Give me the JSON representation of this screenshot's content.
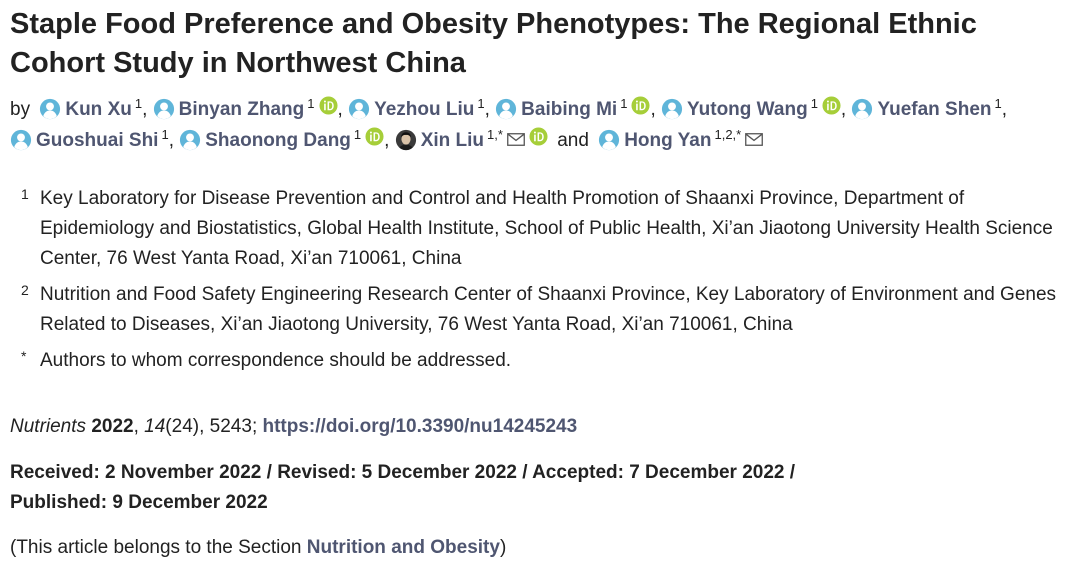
{
  "title": "Staple Food Preference and Obesity Phenotypes: The Regional Ethnic Cohort Study in Northwest China",
  "by_label": "by",
  "authors": [
    {
      "name": "Kun Xu",
      "aff": "1",
      "orcid": false,
      "mail": false,
      "photo": false
    },
    {
      "name": "Binyan Zhang",
      "aff": "1",
      "orcid": true,
      "mail": false,
      "photo": false
    },
    {
      "name": "Yezhou Liu",
      "aff": "1",
      "orcid": false,
      "mail": false,
      "photo": false
    },
    {
      "name": "Baibing Mi",
      "aff": "1",
      "orcid": true,
      "mail": false,
      "photo": false
    },
    {
      "name": "Yutong Wang",
      "aff": "1",
      "orcid": true,
      "mail": false,
      "photo": false
    },
    {
      "name": "Yuefan Shen",
      "aff": "1",
      "orcid": false,
      "mail": false,
      "photo": false
    },
    {
      "name": "Guoshuai Shi",
      "aff": "1",
      "orcid": false,
      "mail": false,
      "photo": false
    },
    {
      "name": "Shaonong Dang",
      "aff": "1",
      "orcid": true,
      "mail": false,
      "photo": false
    },
    {
      "name": "Xin Liu",
      "aff": "1,*",
      "orcid": true,
      "mail": true,
      "photo": true
    },
    {
      "name": "Hong Yan",
      "aff": "1,2,*",
      "orcid": false,
      "mail": true,
      "photo": false
    }
  ],
  "separator": ",",
  "and_label": "and",
  "affiliations": [
    {
      "num": "1",
      "text": "Key Laboratory for Disease Prevention and Control and Health Promotion of Shaanxi Province, Department of Epidemiology and Biostatistics, Global Health Institute, School of Public Health, Xi’an Jiaotong University Health Science Center, 76 West Yanta Road, Xi’an 710061, China"
    },
    {
      "num": "2",
      "text": "Nutrition and Food Safety Engineering Research Center of Shaanxi Province, Key Laboratory of Environment and Genes Related to Diseases, Xi’an Jiaotong University, 76 West Yanta Road, Xi’an 710061, China"
    },
    {
      "num": "*",
      "text": "Authors to whom correspondence should be addressed."
    }
  ],
  "citation": {
    "journal": "Nutrients",
    "year": "2022",
    "volume": "14",
    "issue": "(24)",
    "article": "5243",
    "doi": "https://doi.org/10.3390/nu14245243"
  },
  "dates_line1": "Received: 2 November 2022 / Revised: 5 December 2022 / Accepted: 7 December 2022 /",
  "dates_line2": "Published: 9 December 2022",
  "section": {
    "prefix": "(This article belongs to the Section ",
    "link": "Nutrition and Obesity",
    "suffix": ")"
  },
  "colors": {
    "link": "#4f5671",
    "avatar": "#5fb5d9",
    "orcid": "#a6ce39",
    "text": "#222222"
  }
}
